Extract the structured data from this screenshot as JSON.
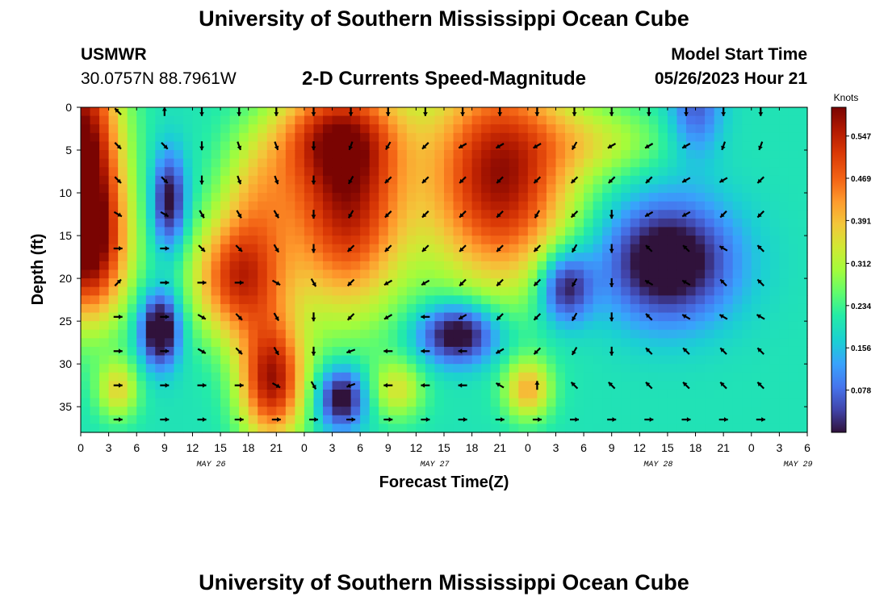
{
  "header": {
    "title": "University of Southern Mississippi Ocean Cube",
    "station": "USMWR",
    "coords": "30.0757N  88.7961W",
    "subtitle": "2-D Currents Speed-Magnitude",
    "start_label": "Model Start Time",
    "start_value": "05/26/2023 Hour 21"
  },
  "footer": {
    "title": "University of Southern Mississippi Ocean Cube"
  },
  "chart_data": {
    "type": "heatmap",
    "title": "2-D Currents Speed-Magnitude",
    "xlabel": "Forecast Time(Z)",
    "ylabel": "Depth (ft)",
    "x_tick_labels": [
      "0",
      "3",
      "6",
      "9",
      "12",
      "15",
      "18",
      "21",
      "0",
      "3",
      "6",
      "9",
      "12",
      "15",
      "18",
      "21",
      "0",
      "3",
      "6",
      "9",
      "12",
      "15",
      "18",
      "21",
      "0",
      "3",
      "6"
    ],
    "date_labels": [
      {
        "text": "MAY 26",
        "tick_index": 5
      },
      {
        "text": "MAY 27",
        "tick_index": 13
      },
      {
        "text": "MAY 28",
        "tick_index": 21
      },
      {
        "text": "MAY 29",
        "tick_index": 26
      }
    ],
    "y_ticks": [
      0,
      5,
      10,
      15,
      20,
      25,
      30,
      35
    ],
    "ylim": [
      0,
      38
    ],
    "colorbar": {
      "title": "Knots",
      "ticks": [
        "0.547",
        "0.469",
        "0.391",
        "0.312",
        "0.234",
        "0.156",
        "0.078"
      ],
      "range": [
        0,
        0.6
      ]
    },
    "speed_blobs": [
      {
        "t": 0,
        "d": 5,
        "st": 3,
        "sd": 9,
        "v": 0.42
      },
      {
        "t": 1,
        "d": 17,
        "st": 3,
        "sd": 6,
        "v": 0.3
      },
      {
        "t": 8.5,
        "d": 26,
        "st": 1.5,
        "sd": 3,
        "v": -0.28
      },
      {
        "t": 9.5,
        "d": 11,
        "st": 1.3,
        "sd": 4,
        "v": -0.22
      },
      {
        "t": 4,
        "d": 33,
        "st": 1.6,
        "sd": 2.5,
        "v": 0.16
      },
      {
        "t": 17,
        "d": 20,
        "st": 3.5,
        "sd": 5,
        "v": 0.32
      },
      {
        "t": 20.5,
        "d": 32,
        "st": 2.5,
        "sd": 5,
        "v": 0.36
      },
      {
        "t": 19,
        "d": 10,
        "st": 3,
        "sd": 5,
        "v": 0.14
      },
      {
        "t": 28.5,
        "d": 11,
        "st": 4.5,
        "sd": 9,
        "v": 0.36
      },
      {
        "t": 27,
        "d": 3,
        "st": 5,
        "sd": 4,
        "v": 0.18
      },
      {
        "t": 28,
        "d": 34,
        "st": 1.8,
        "sd": 2.5,
        "v": -0.24
      },
      {
        "t": 34,
        "d": 33,
        "st": 2,
        "sd": 2.5,
        "v": 0.14
      },
      {
        "t": 40.5,
        "d": 26.5,
        "st": 3,
        "sd": 2.5,
        "v": -0.26
      },
      {
        "t": 45,
        "d": 8,
        "st": 5.5,
        "sd": 9,
        "v": 0.38
      },
      {
        "t": 48,
        "d": 33,
        "st": 1.8,
        "sd": 2.5,
        "v": 0.2
      },
      {
        "t": 52,
        "d": 21,
        "st": 2,
        "sd": 3,
        "v": -0.22
      },
      {
        "t": 63,
        "d": 18,
        "st": 5,
        "sd": 5,
        "v": -0.26
      },
      {
        "t": 56,
        "d": 4,
        "st": 5,
        "sd": 3,
        "v": 0.1
      },
      {
        "t": 66,
        "d": 0,
        "st": 2,
        "sd": 4,
        "v": -0.14
      }
    ],
    "arrow_field": {
      "times": [
        4,
        9,
        13,
        17,
        21,
        25,
        29,
        33,
        37,
        41,
        45,
        49,
        53,
        57,
        61,
        65,
        69,
        73
      ],
      "depths": [
        0,
        4,
        8,
        12,
        16,
        20,
        24,
        28,
        32,
        36
      ],
      "angles_deg": [
        [
          225,
          270,
          90,
          90,
          90,
          90,
          90,
          90,
          90,
          90,
          90,
          90,
          90,
          90,
          90,
          90,
          90,
          90
        ],
        [
          45,
          45,
          90,
          70,
          70,
          90,
          110,
          120,
          135,
          150,
          150,
          150,
          120,
          150,
          150,
          150,
          110,
          110
        ],
        [
          45,
          45,
          90,
          70,
          70,
          90,
          120,
          135,
          135,
          135,
          135,
          135,
          135,
          135,
          135,
          150,
          150,
          135
        ],
        [
          30,
          30,
          60,
          60,
          60,
          90,
          120,
          135,
          135,
          135,
          135,
          120,
          135,
          90,
          150,
          150,
          135,
          135
        ],
        [
          0,
          0,
          45,
          45,
          60,
          90,
          135,
          135,
          135,
          135,
          135,
          135,
          120,
          90,
          225,
          225,
          210,
          225
        ],
        [
          315,
          0,
          0,
          0,
          30,
          60,
          135,
          150,
          150,
          135,
          135,
          135,
          120,
          90,
          210,
          210,
          225,
          225
        ],
        [
          0,
          0,
          30,
          45,
          60,
          90,
          135,
          150,
          180,
          150,
          135,
          135,
          120,
          90,
          225,
          210,
          210,
          210
        ],
        [
          0,
          0,
          30,
          45,
          60,
          90,
          160,
          180,
          180,
          180,
          150,
          135,
          120,
          90,
          225,
          225,
          225,
          225
        ],
        [
          0,
          0,
          0,
          0,
          30,
          60,
          160,
          180,
          180,
          180,
          210,
          270,
          225,
          225,
          225,
          225,
          225,
          225
        ],
        [
          0,
          0,
          0,
          0,
          0,
          0,
          0,
          0,
          0,
          0,
          0,
          0,
          0,
          0,
          0,
          0,
          0,
          0
        ]
      ]
    }
  }
}
